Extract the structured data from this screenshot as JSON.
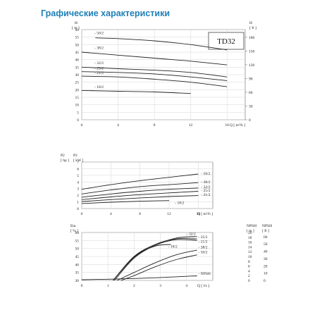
{
  "page_title": "Графические характеристики",
  "model": "TD32",
  "chart_data": [
    {
      "type": "line",
      "title": "",
      "xlabel": "Q [ m³/h ]",
      "ylabel": "H [ m ]",
      "y2label": "H [ ft ]",
      "x_unit": "m³/h",
      "xlim": [
        0,
        18
      ],
      "ylim": [
        0,
        60
      ],
      "y2lim": [
        0,
        196.8
      ],
      "x_ticks": [
        "0",
        "4",
        "8",
        "12",
        "16"
      ],
      "y_ticks": [
        "0",
        "5",
        "10",
        "15",
        "20",
        "25",
        "30",
        "35",
        "40",
        "45",
        "50",
        "55",
        "60"
      ],
      "y2_ticks": [
        "0",
        "30",
        "60",
        "90",
        "120",
        "150",
        "180"
      ],
      "series": [
        {
          "name": "50/2",
          "x": [
            1.5,
            4,
            8,
            12,
            16
          ],
          "y": [
            54.5,
            54,
            52.5,
            50,
            46.5
          ]
        },
        {
          "name": "38/2",
          "x": [
            0,
            4,
            8,
            12,
            16
          ],
          "y": [
            45,
            43,
            41,
            39,
            36.5
          ]
        },
        {
          "name": "32/2",
          "x": [
            0,
            4,
            8,
            12,
            16
          ],
          "y": [
            35,
            34,
            33,
            31.5,
            28.5
          ]
        },
        {
          "name": "25/2",
          "x": [
            0,
            4,
            8,
            12,
            16
          ],
          "y": [
            32,
            31.5,
            30.5,
            28.5,
            26
          ]
        },
        {
          "name": "21/2",
          "x": [
            0,
            4,
            8,
            12,
            16
          ],
          "y": [
            29,
            28.5,
            27,
            25,
            22
          ]
        },
        {
          "name": "18/2",
          "x": [
            0,
            4,
            8,
            12
          ],
          "y": [
            19.5,
            19,
            18.5,
            17.5
          ]
        }
      ]
    },
    {
      "type": "line",
      "title": "",
      "xlabel": "Q [ m³/h ]",
      "ylabel": "P2 [ hp ] [ kW ]",
      "ylabel_left": "P2 [ hp ]",
      "ylabel_right": "P2 [ kW ]",
      "x_unit": "m³/h",
      "xlim": [
        0,
        18
      ],
      "ylim": [
        0,
        7
      ],
      "x_ticks": [
        "0",
        "4",
        "8",
        "12",
        "16"
      ],
      "y_ticks": [
        "0",
        "1",
        "2",
        "3",
        "4",
        "5",
        "6",
        "7"
      ],
      "series": [
        {
          "name": "50/2",
          "x": [
            0,
            4,
            8,
            12,
            16
          ],
          "y": [
            2.9,
            3.6,
            4.2,
            4.7,
            5.2
          ]
        },
        {
          "name": "38/2",
          "x": [
            0,
            4,
            8,
            12,
            16
          ],
          "y": [
            2.2,
            2.8,
            3.3,
            3.6,
            3.9
          ]
        },
        {
          "name": "32/2",
          "x": [
            0,
            4,
            8,
            12,
            16
          ],
          "y": [
            1.7,
            2.2,
            2.6,
            2.9,
            3.1
          ]
        },
        {
          "name": "25/2",
          "x": [
            0,
            4,
            8,
            12,
            16
          ],
          "y": [
            1.35,
            1.75,
            2.1,
            2.35,
            2.6
          ]
        },
        {
          "name": "21/2",
          "x": [
            0,
            4,
            8,
            12,
            16
          ],
          "y": [
            1.05,
            1.35,
            1.6,
            1.8,
            1.95
          ]
        },
        {
          "name": "18/2",
          "x": [
            0,
            4,
            8,
            12
          ],
          "y": [
            0.75,
            0.95,
            1.1,
            1.2
          ]
        }
      ]
    },
    {
      "type": "line",
      "title": "",
      "xlabel": "Q [ l/s ]",
      "ylabel": "Eta [ % ]",
      "y2label": "NPSH [ m ]",
      "y3label": "NPSH [ ft ]",
      "x_unit": "l/s",
      "xlim": [
        0,
        5
      ],
      "ylim": [
        30,
        60
      ],
      "y2lim": [
        0,
        20
      ],
      "y3lim": [
        0,
        65.6
      ],
      "x_ticks": [
        "0",
        "1",
        "2",
        "3",
        "4"
      ],
      "y_ticks": [
        "30",
        "35",
        "40",
        "45",
        "50",
        "55",
        "60"
      ],
      "y2_ticks": [
        "0",
        "2",
        "4",
        "6",
        "8",
        "10",
        "12",
        "14",
        "16",
        "18",
        "20"
      ],
      "y3_ticks": [
        "0",
        "10",
        "20",
        "30",
        "40",
        "50",
        "60"
      ],
      "series": [
        {
          "name": "32/2",
          "x": [
            1.25,
            2,
            2.8,
            3.6,
            4.4
          ],
          "y": [
            30,
            44,
            52,
            56.5,
            57.5
          ]
        },
        {
          "name": "25/2",
          "x": [
            1.2,
            2,
            2.8,
            3.6,
            4.4
          ],
          "y": [
            30,
            45,
            52.5,
            56,
            56
          ]
        },
        {
          "name": "21/2",
          "x": [
            1.2,
            2,
            2.8,
            3.6,
            4.4
          ],
          "y": [
            30,
            44.5,
            52,
            55.5,
            55
          ]
        },
        {
          "name": "18/2",
          "x": [
            1.2,
            2,
            2.8,
            3.4
          ],
          "y": [
            30,
            45,
            51.5,
            52.5
          ]
        },
        {
          "name": "38/2",
          "x": [
            1.35,
            2,
            2.8,
            3.6,
            4.4
          ],
          "y": [
            30,
            35,
            41,
            46,
            49
          ]
        },
        {
          "name": "50/2",
          "x": [
            1.5,
            2,
            2.8,
            3.6,
            4.4
          ],
          "y": [
            30,
            33,
            38.5,
            43,
            46
          ]
        },
        {
          "name": "NPSH",
          "axis": "NPSH [ m ]",
          "x": [
            0,
            1,
            2,
            3,
            4,
            4.4
          ],
          "y": [
            0.3,
            0.5,
            0.8,
            1.2,
            1.7,
            1.9
          ]
        }
      ]
    }
  ]
}
